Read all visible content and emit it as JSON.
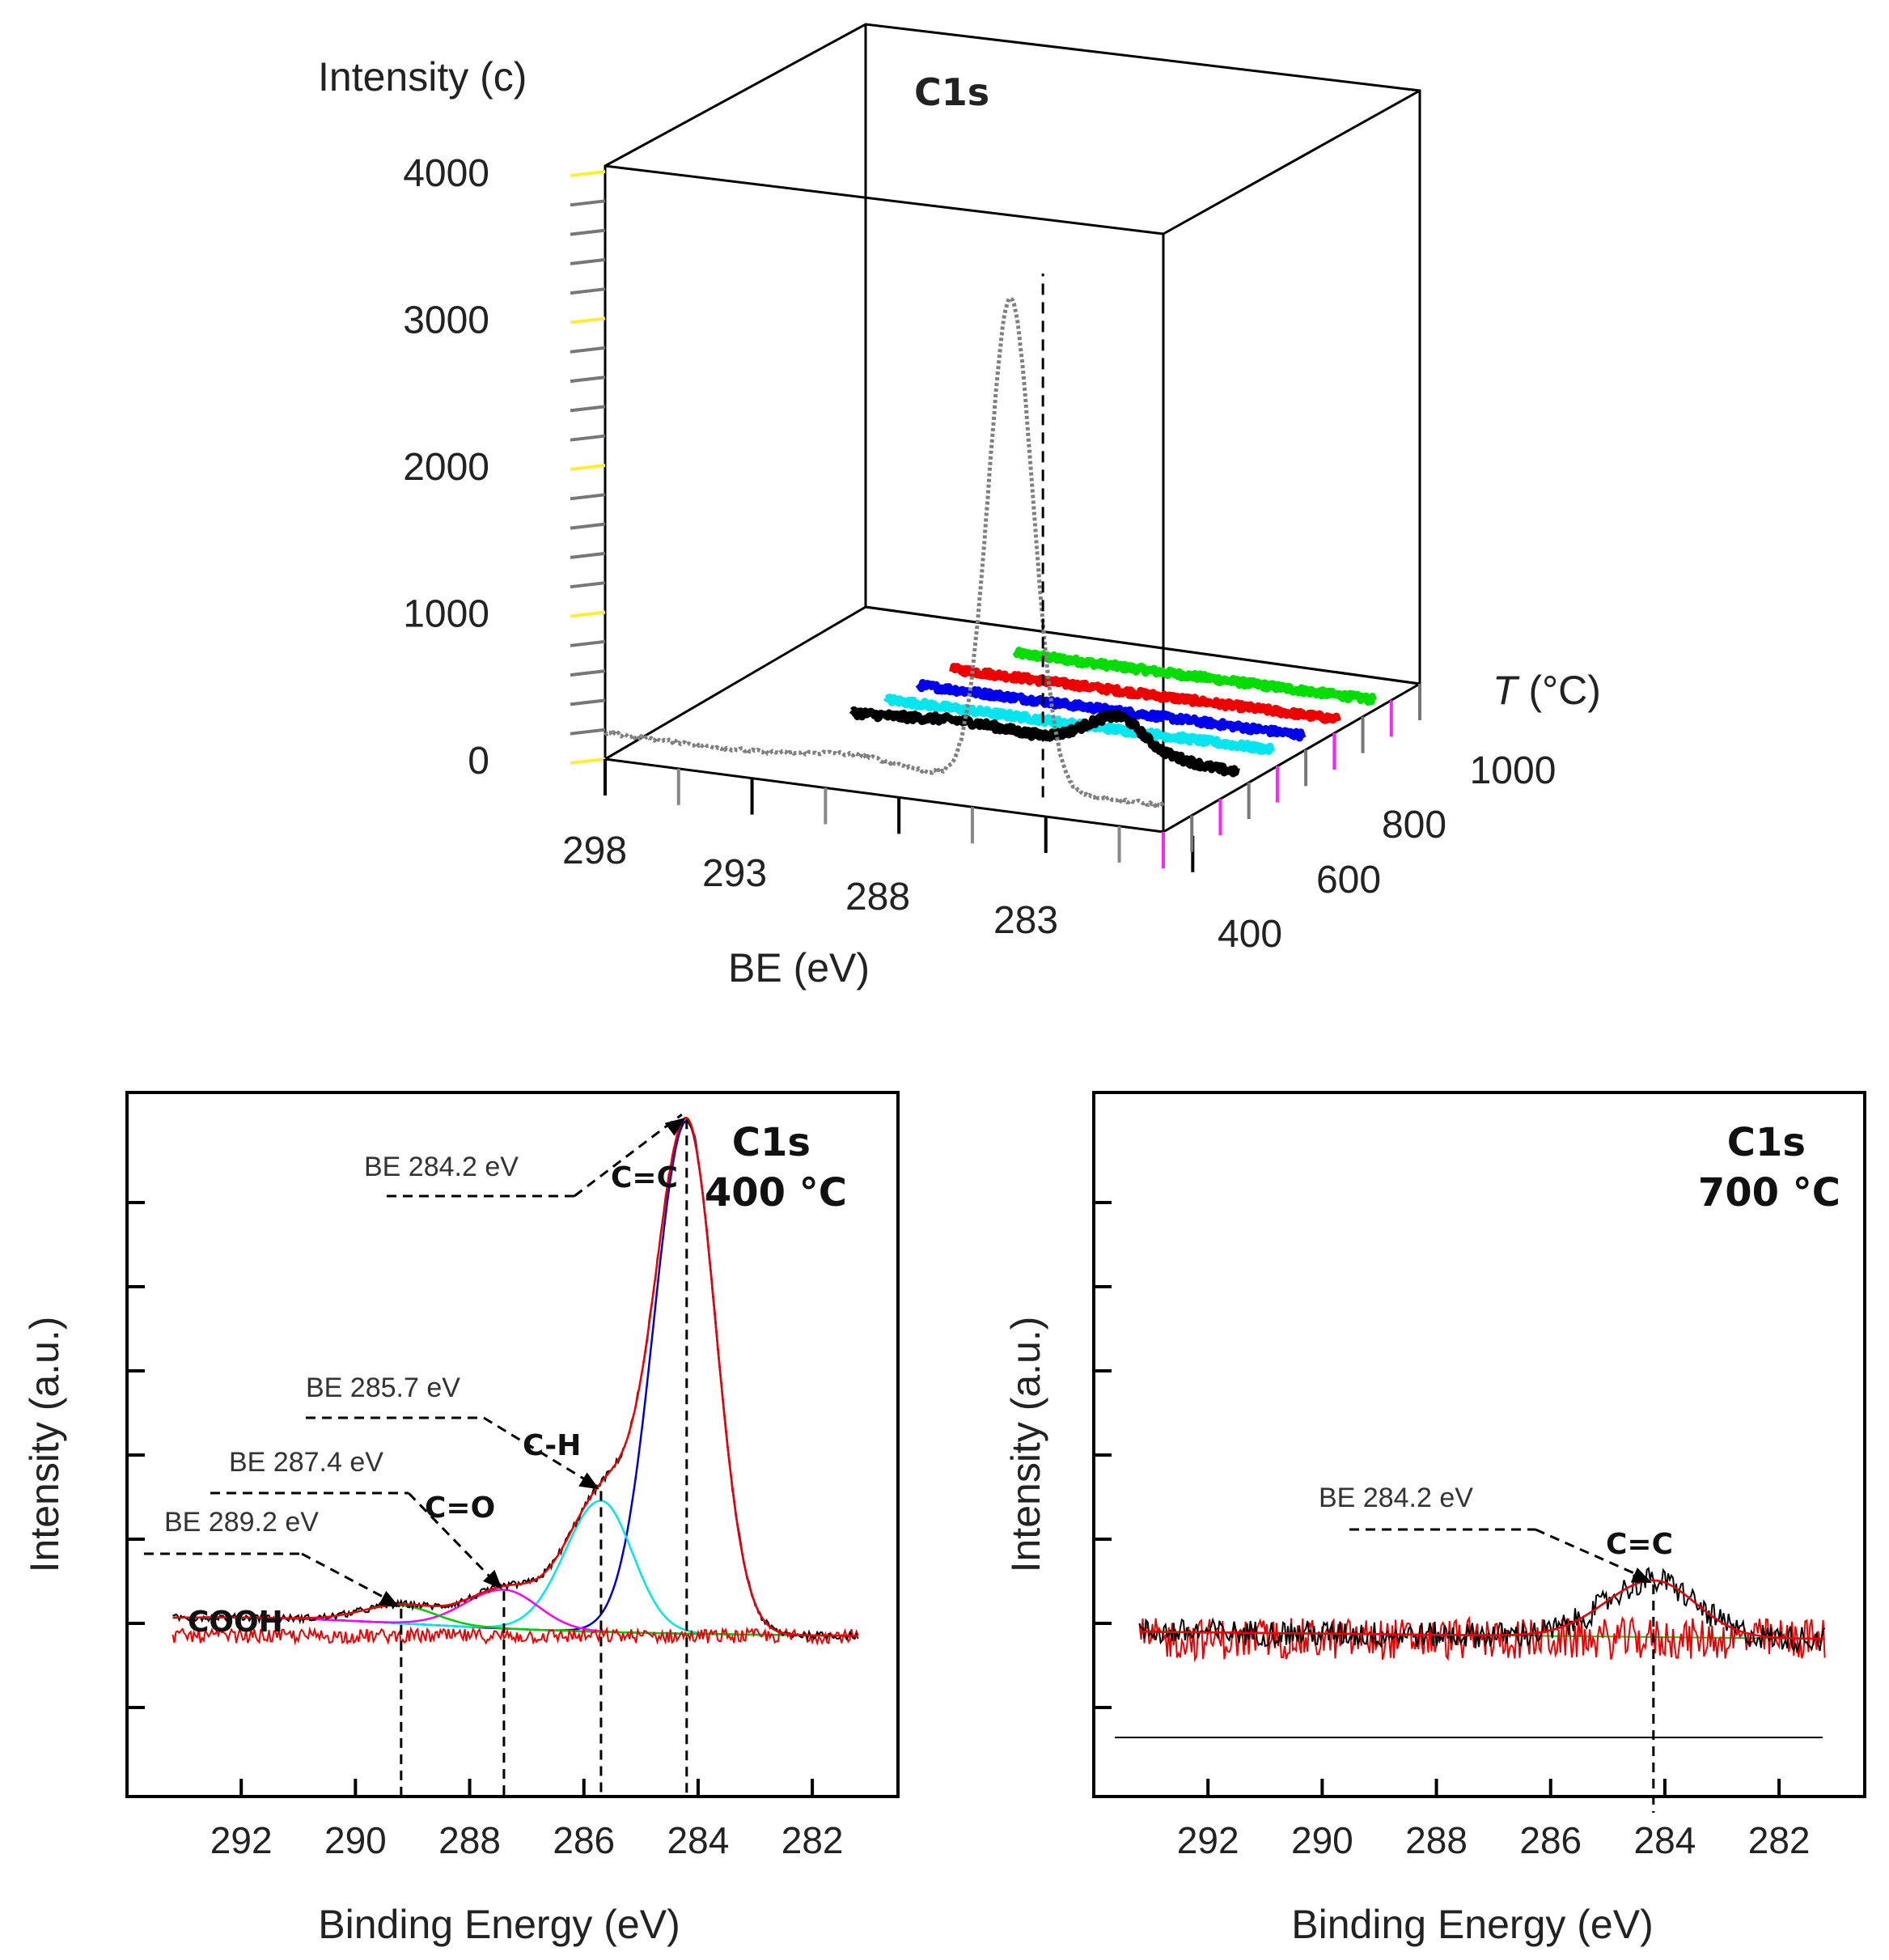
{
  "chart_data": [
    {
      "type": "line",
      "subtype": "3d-waterfall",
      "title": "C1s",
      "xlabel": "BE (eV)",
      "ylabel": "Intensity (c)",
      "zlabel_italic": "T",
      "zlabel_rest": " (°C)",
      "x_ticks": [
        "298",
        "293",
        "288",
        "283"
      ],
      "y_ticks": [
        "0",
        "1000",
        "2000",
        "3000",
        "4000"
      ],
      "z_ticks": [
        "400",
        "600",
        "800",
        "1000"
      ],
      "xlim": [
        298,
        279
      ],
      "ylim": [
        0,
        4000
      ],
      "peak_marker_be": 284.2,
      "series": [
        {
          "name": "gray",
          "color": "#808080",
          "baseline": 180,
          "peak": 3320,
          "peak_be": 284.2,
          "width": 0.75,
          "noise": 12,
          "z_index": 0
        },
        {
          "name": "black",
          "color": "#000000",
          "baseline": 80,
          "peak": 150,
          "peak_be": 284.2,
          "width": 0.9,
          "noise": 25,
          "z_index": 1
        },
        {
          "name": "cyan",
          "color": "#00e5ee",
          "baseline": 60,
          "peak": 0,
          "peak_be": 284.2,
          "width": 1,
          "noise": 22,
          "z_index": 2
        },
        {
          "name": "blue",
          "color": "#0000ee",
          "baseline": 60,
          "peak": 0,
          "peak_be": 284.2,
          "width": 1,
          "noise": 22,
          "z_index": 3
        },
        {
          "name": "red",
          "color": "#ee0000",
          "baseline": 60,
          "peak": 0,
          "peak_be": 284.2,
          "width": 1,
          "noise": 22,
          "z_index": 4
        },
        {
          "name": "green",
          "color": "#00dd00",
          "baseline": 60,
          "peak": 0,
          "peak_be": 284.2,
          "width": 1,
          "noise": 22,
          "z_index": 5
        }
      ]
    },
    {
      "type": "line",
      "title": "C1s",
      "subtitle": "400 °C",
      "xlabel": "Binding Energy (eV)",
      "ylabel": "Intensity (a.u.)",
      "x_ticks": [
        "292",
        "290",
        "288",
        "286",
        "284",
        "282"
      ],
      "xlim": [
        294,
        280.5
      ],
      "ylim": [
        0,
        1
      ],
      "baseline": 0.12,
      "components": [
        {
          "name": "C=C",
          "be": 284.2,
          "amp": 0.86,
          "width": 0.55,
          "color": "#0000cc"
        },
        {
          "name": "C-H",
          "be": 285.7,
          "amp": 0.22,
          "width": 0.6,
          "color": "#00e5ee"
        },
        {
          "name": "C=O",
          "be": 287.4,
          "amp": 0.065,
          "width": 0.65,
          "color": "#ff00ff"
        },
        {
          "name": "COOH",
          "be": 289.2,
          "amp": 0.03,
          "width": 0.65,
          "color": "#00cc00"
        }
      ],
      "annotations": [
        {
          "label": "BE 284.2 eV",
          "species": "C=C",
          "be": 284.2
        },
        {
          "label": "BE 285.7 eV",
          "species": "C-H",
          "be": 285.7
        },
        {
          "label": "BE 287.4 eV",
          "species": "C=O",
          "be": 287.4
        },
        {
          "label": "BE 289.2 eV",
          "species": "COOH",
          "be": 289.2
        }
      ]
    },
    {
      "type": "line",
      "title": "C1s",
      "subtitle": "700 °C",
      "xlabel": "Binding Energy (eV)",
      "ylabel": "Intensity (a.u.)",
      "x_ticks": [
        "292",
        "290",
        "288",
        "286",
        "284",
        "282"
      ],
      "xlim": [
        294,
        280.5
      ],
      "ylim": [
        0,
        1
      ],
      "baseline": 0.115,
      "components": [
        {
          "name": "C=C",
          "be": 284.2,
          "amp": 0.095,
          "width": 0.8,
          "color": "#6633cc"
        }
      ],
      "annotations": [
        {
          "label": "BE 284.2 eV",
          "species": "C=C",
          "be": 284.2
        }
      ]
    }
  ]
}
